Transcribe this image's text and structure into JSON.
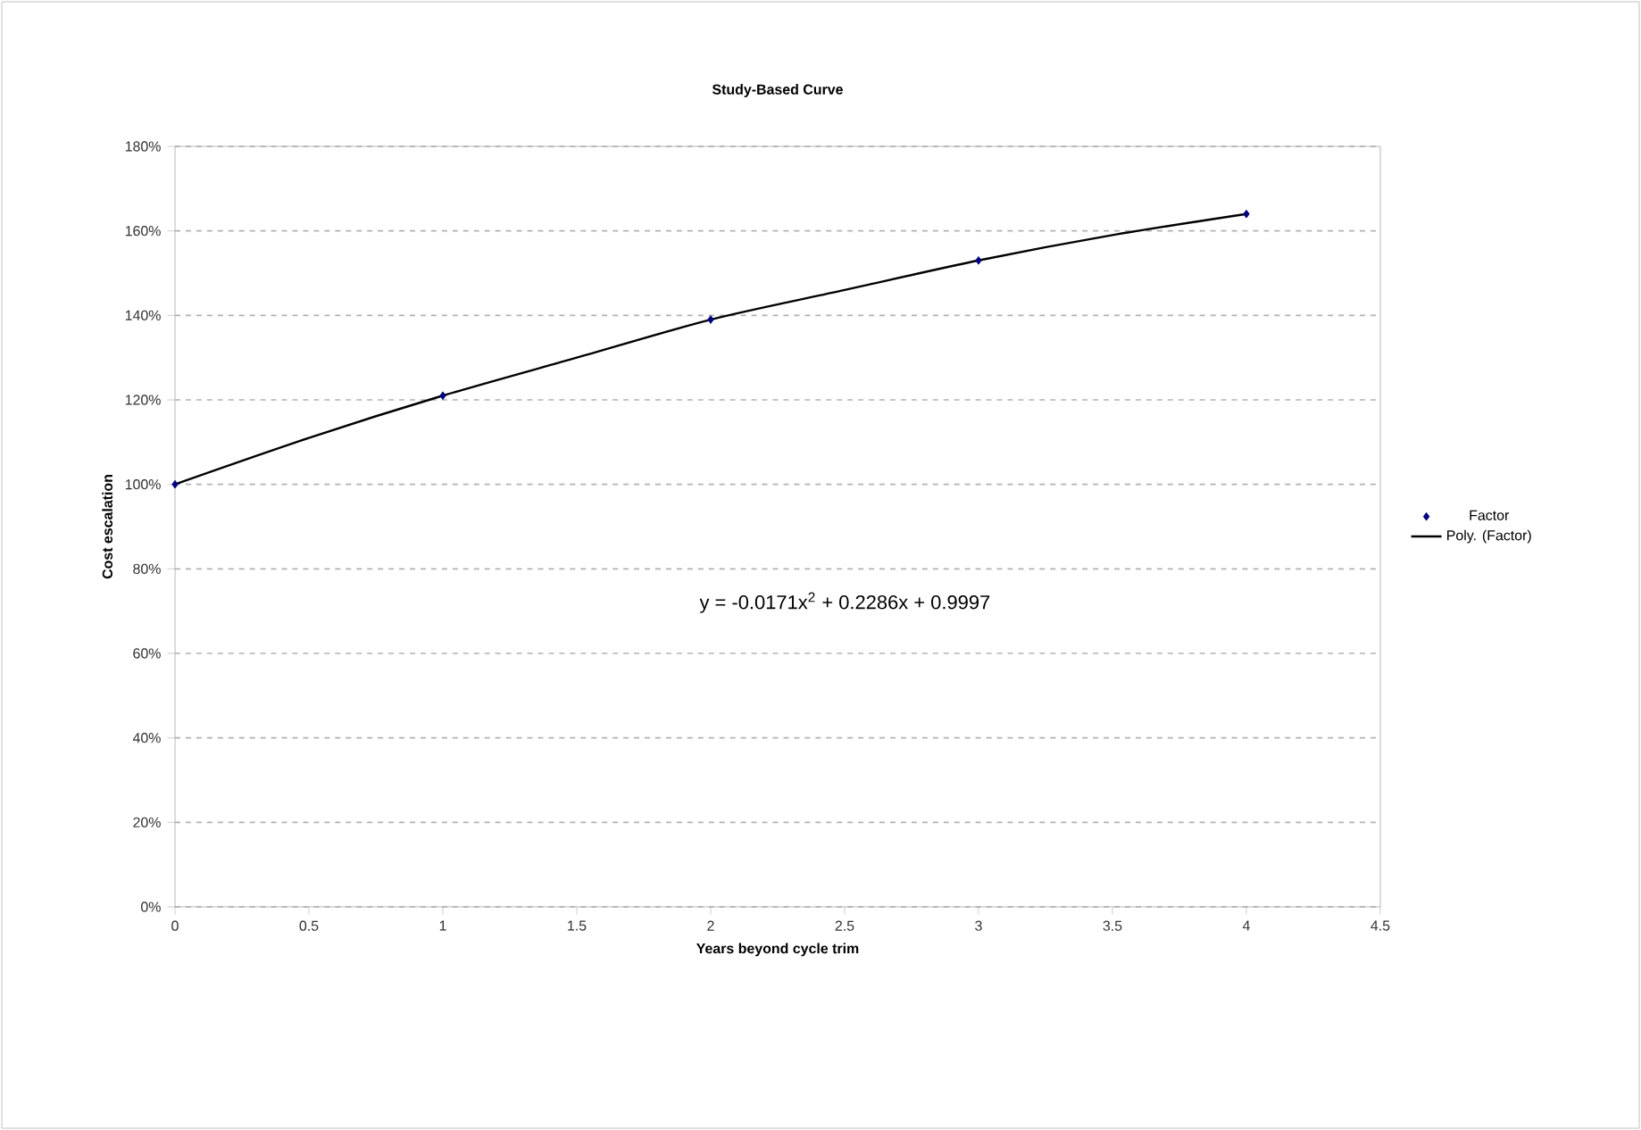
{
  "chart_data": {
    "type": "scatter",
    "title": "Study-Based Curve",
    "xlabel": "Years beyond cycle trim",
    "ylabel": "Cost escalation",
    "series": [
      {
        "name": "Factor",
        "color": "#000080",
        "marker": "diamond",
        "x": [
          0,
          1,
          2,
          3,
          4
        ],
        "values": [
          100,
          121,
          139,
          153,
          164
        ]
      },
      {
        "name": "Poly. (Factor)",
        "type": "line",
        "color": "#000000",
        "marker": "none",
        "x": [
          0,
          0.5,
          1,
          1.5,
          2,
          2.5,
          3,
          3.5,
          4
        ],
        "values": [
          100,
          111,
          121,
          130,
          139,
          146,
          153,
          159,
          164
        ]
      }
    ],
    "annotations": [
      "y = -0.0171x$^{2}$ + 0.2286x + 0.9997"
    ],
    "xlim": [
      0,
      4.5
    ],
    "xticks": [
      0,
      0.5,
      1,
      1.5,
      2,
      2.5,
      3,
      3.5,
      4,
      4.5
    ],
    "ylim": [
      0,
      180
    ],
    "yticks": [
      {
        "value": 0,
        "label": "0%"
      },
      {
        "value": 20,
        "label": "20%"
      },
      {
        "value": 40,
        "label": "40%"
      },
      {
        "value": 60,
        "label": "60%"
      },
      {
        "value": 80,
        "label": "80%"
      },
      {
        "value": 100,
        "label": "100%"
      },
      {
        "value": 120,
        "label": "120%"
      },
      {
        "value": 140,
        "label": "140%"
      },
      {
        "value": 160,
        "label": "160%"
      },
      {
        "value": 180,
        "label": "180%"
      }
    ],
    "grid": "y",
    "legend": "right"
  }
}
